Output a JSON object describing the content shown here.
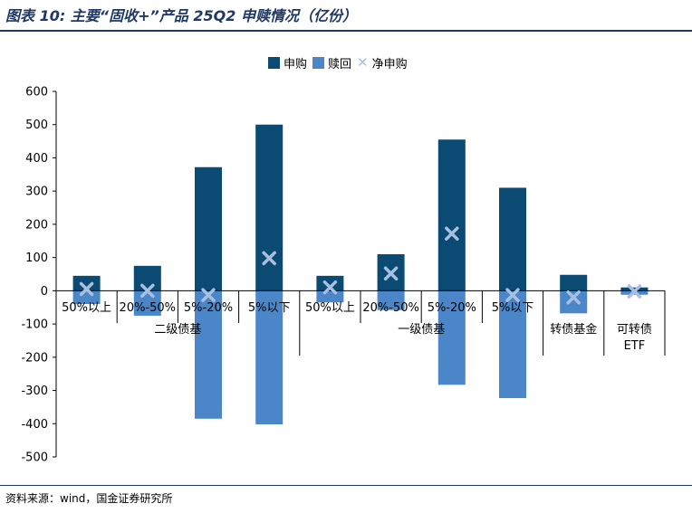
{
  "title": "图表 10: 主要“固收+”产品 25Q2 申赎情况（亿份）",
  "source": "资料来源：wind，国金证券研究所",
  "colors": {
    "purchase": "#0a4a73",
    "redemption": "#4a86c8",
    "net": "#a9bfe0",
    "title": "#1f3864"
  },
  "legend": {
    "purchase": "申购",
    "redemption": "赎回",
    "net": "净申购"
  },
  "chart_data": {
    "type": "bar",
    "categories": [
      "50%以上",
      "20%-50%",
      "5%-20%",
      "5%以下",
      "50%以上",
      "20%-50%",
      "5%-20%",
      "5%以下",
      "转债基金",
      "可转债\nETF"
    ],
    "groups": [
      {
        "label": "二级债基",
        "categories": [
          0,
          1,
          2,
          3
        ]
      },
      {
        "label": "一级债基",
        "categories": [
          4,
          5,
          6,
          7
        ]
      }
    ],
    "series": [
      {
        "name": "申购",
        "values": [
          45,
          75,
          372,
          500,
          45,
          110,
          455,
          310,
          48,
          10
        ]
      },
      {
        "name": "赎回",
        "values": [
          -40,
          -75,
          -385,
          -402,
          -35,
          -58,
          -283,
          -323,
          -68,
          -12
        ]
      },
      {
        "name": "净申购",
        "values": [
          5,
          0,
          -13,
          98,
          10,
          52,
          172,
          -13,
          -20,
          -2
        ]
      }
    ],
    "ylim": [
      -500,
      600
    ],
    "yticks": [
      600,
      500,
      400,
      300,
      200,
      100,
      0,
      -100,
      -200,
      -300,
      -400,
      -500
    ],
    "legend_position": "top-center"
  }
}
